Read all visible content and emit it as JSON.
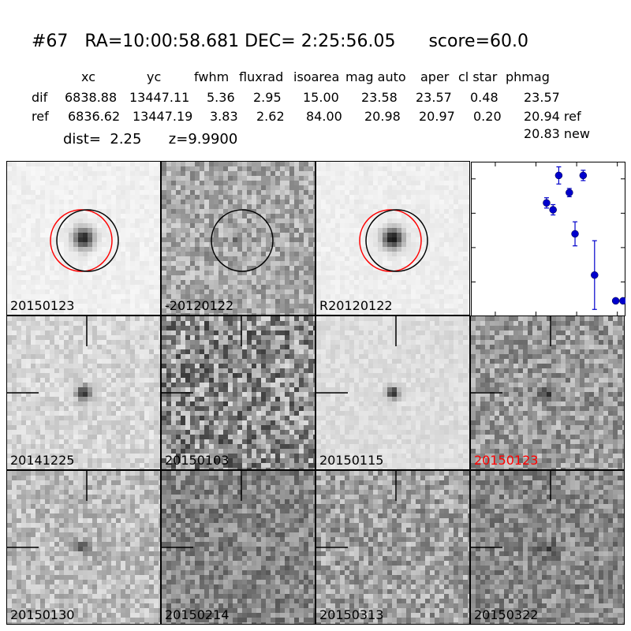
{
  "title": "#67   RA=10:00:58.681 DEC= 2:25:56.05      score=60.0",
  "table": {
    "headers": [
      "xc",
      "yc",
      "fwhm",
      "fluxrad",
      "isoarea",
      "mag auto",
      "aper",
      "cl star",
      "phmag"
    ],
    "rows": [
      {
        "label": "dif",
        "values": [
          "6838.88",
          "13447.11",
          "5.36",
          "2.95",
          "15.00",
          "23.58",
          "23.57",
          "0.48",
          "23.57"
        ]
      },
      {
        "label": "ref",
        "values": [
          "6836.62",
          "13447.19",
          "3.83",
          "2.62",
          "84.00",
          "20.98",
          "20.97",
          "0.20",
          "20.94 ref"
        ]
      }
    ],
    "extra": "20.83 new"
  },
  "dist_line": "dist=  2.25      z=9.9900",
  "panels": [
    {
      "label": "20150123",
      "bg": "#f0f0f0",
      "noise": 0.03,
      "source": 0.9,
      "sigma": 9,
      "circles": [
        "red",
        "black"
      ],
      "crosshair": false,
      "red_label": false
    },
    {
      "label": "-20120122",
      "bg": "#a8a8a8",
      "noise": 0.18,
      "source": 0.55,
      "sigma": 5,
      "circles": [
        "black"
      ],
      "crosshair": false,
      "red_label": false
    },
    {
      "label": "R20120122",
      "bg": "#eeeeee",
      "noise": 0.03,
      "source": 0.95,
      "sigma": 9,
      "circles": [
        "red",
        "black"
      ],
      "crosshair": false,
      "red_label": false
    },
    {
      "label": "20141225",
      "bg": "#d6d6d6",
      "noise": 0.09,
      "source": 0.85,
      "sigma": 6,
      "circles": [],
      "crosshair": true,
      "red_label": false
    },
    {
      "label": "20150103",
      "bg": "#8c8c8c",
      "noise": 0.32,
      "source": 0.0,
      "sigma": 5,
      "circles": [],
      "crosshair": true,
      "red_label": false
    },
    {
      "label": "20150115",
      "bg": "#dddddd",
      "noise": 0.05,
      "source": 0.9,
      "sigma": 5,
      "circles": [],
      "crosshair": true,
      "red_label": false
    },
    {
      "label": "20150123",
      "bg": "#9a9a9a",
      "noise": 0.2,
      "source": 0.7,
      "sigma": 6,
      "circles": [],
      "crosshair": true,
      "red_label": true
    },
    {
      "label": "20150130",
      "bg": "#bcbcbc",
      "noise": 0.15,
      "source": 0.5,
      "sigma": 6,
      "circles": [],
      "crosshair": true,
      "red_label": false
    },
    {
      "label": "20150214",
      "bg": "#858585",
      "noise": 0.18,
      "source": 0.0,
      "sigma": 5,
      "circles": [],
      "crosshair": true,
      "red_label": false
    },
    {
      "label": "20150313",
      "bg": "#a0a0a0",
      "noise": 0.2,
      "source": 0.15,
      "sigma": 5,
      "circles": [],
      "crosshair": true,
      "red_label": false
    },
    {
      "label": "20150322",
      "bg": "#8a8a8a",
      "noise": 0.18,
      "source": 0.35,
      "sigma": 7,
      "circles": [],
      "crosshair": true,
      "red_label": false
    }
  ],
  "chart_data": {
    "type": "scatter",
    "x": [
      -37,
      -29,
      -22,
      -9,
      -2,
      8,
      22,
      48,
      57
    ],
    "y": [
      22.7,
      22.9,
      21.9,
      22.4,
      23.6,
      21.9,
      24.8,
      25.55,
      25.55
    ],
    "yerr": [
      0.15,
      0.15,
      0.25,
      0.12,
      0.35,
      0.15,
      1.0,
      0.05,
      0.05
    ],
    "xlim": [
      -130,
      60
    ],
    "ylim": [
      26,
      21.5
    ],
    "xticks": [
      -100,
      -50,
      0,
      50
    ],
    "yticks": [
      22,
      23,
      24,
      25,
      26
    ],
    "color": "#0000cc"
  }
}
